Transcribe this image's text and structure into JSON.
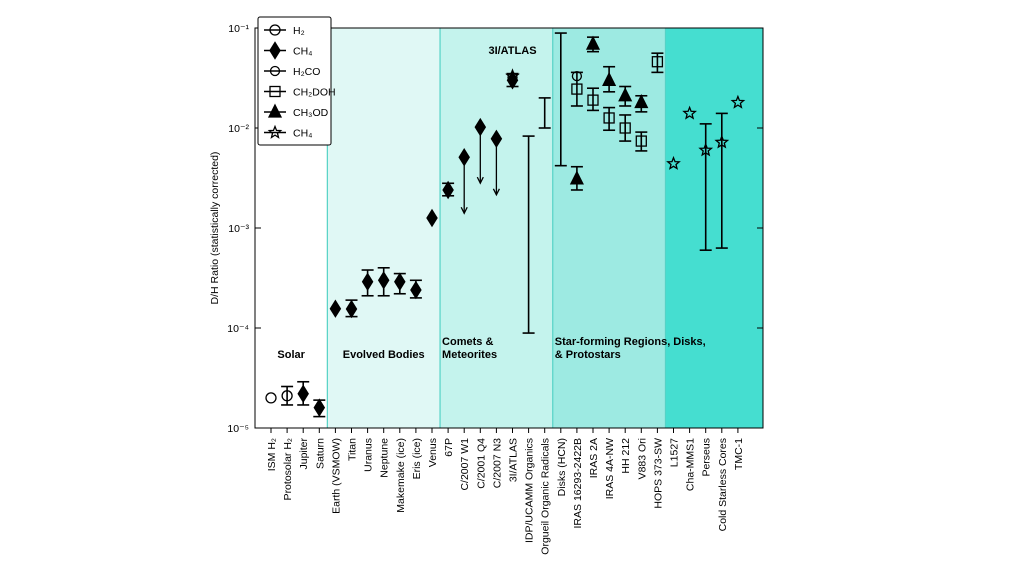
{
  "chart_data": {
    "type": "errorbar",
    "y_label": "D/H Ratio (statistically corrected)",
    "y_scale": "log",
    "ylim": [
      1e-05,
      0.1
    ],
    "yticks": [
      {
        "value": 1e-05,
        "label": "10⁻⁵"
      },
      {
        "value": 0.0001,
        "label": "10⁻⁴"
      },
      {
        "value": 0.001,
        "label": "10⁻³"
      },
      {
        "value": 0.01,
        "label": "10⁻²"
      },
      {
        "value": 0.1,
        "label": "10⁻¹"
      }
    ],
    "legend": "upper left",
    "categories": [
      "ISM H₂",
      "Protosolar H₂",
      "Jupiter",
      "Saturn",
      "Earth (VSMOW)",
      "Titan",
      "Uranus",
      "Neptune",
      "Makemake (ice)",
      "Eris (ice)",
      "Venus",
      "67P",
      "C/2007 W1",
      "C/2001 Q4",
      "C/2007 N3",
      "3I/ATLAS",
      "IDP/UCAMM Organics",
      "Orgueil Organic Radicals",
      "Disks (HCN)",
      "IRAS 16293-2422B",
      "IRAS 2A",
      "IRAS 4A-NW",
      "HH 212",
      "V883 Ori",
      "HOPS 373-SW",
      "L1527",
      "Cha-MMS1",
      "Perseus",
      "Cold Starless Cores",
      "TMC-1"
    ],
    "regions": [
      {
        "label": [
          "Solar"
        ],
        "first": "ISM H₂",
        "last": "Saturn",
        "color": "#ffffff"
      },
      {
        "label": [
          "Evolved Bodies"
        ],
        "first": "Earth (VSMOW)",
        "last": "Venus",
        "color": "#e0f8f5"
      },
      {
        "label": [
          "Comets &",
          "Meteorites"
        ],
        "first": "67P",
        "last": "Orgueil Organic Radicals",
        "color": "#c4f3ed"
      },
      {
        "label": [
          "Star-forming Regions, Disks,",
          " & Protostars"
        ],
        "first": "Disks (HCN)",
        "last": "HOPS 373-SW",
        "color": "#9deae2"
      },
      {
        "label": [],
        "first": "L1527",
        "last": "TMC-1",
        "color": "#45ded0"
      }
    ],
    "annotations": [
      {
        "text": "3I/ATLAS",
        "x": "3I/ATLAS",
        "y": 0.055
      }
    ],
    "series": [
      {
        "name": "H₂",
        "marker": "circle",
        "color": "#000000",
        "x": [
          "ISM H₂",
          "Protosolar H₂"
        ],
        "values": [
          2e-05,
          2.1e-05
        ],
        "lower": [
          null,
          1.7e-05
        ],
        "upper": [
          null,
          2.6e-05
        ]
      },
      {
        "name": "CH₄",
        "marker": "diamond",
        "color": "#000000",
        "x": [
          "Jupiter",
          "Saturn",
          "Earth (VSMOW)",
          "Titan",
          "Uranus",
          "Neptune",
          "Makemake (ice)",
          "Eris (ice)",
          "Venus",
          "67P",
          "C/2007 W1",
          "C/2001 Q4",
          "C/2007 N3",
          "3I/ATLAS"
        ],
        "values": [
          2.2e-05,
          1.6e-05,
          0.000156,
          0.000155,
          0.00029,
          0.0003,
          0.00029,
          0.00024,
          0.00126,
          0.0024,
          0.0051,
          0.0102,
          0.0078,
          0.03
        ],
        "lower": [
          1.7e-05,
          1.3e-05,
          null,
          0.00013,
          0.00021,
          0.00021,
          0.00022,
          0.0002,
          null,
          0.0021,
          null,
          null,
          null,
          0.026
        ],
        "upper": [
          2.9e-05,
          1.9e-05,
          null,
          0.00019,
          0.00038,
          0.0004,
          0.00035,
          0.0003,
          null,
          0.0028,
          null,
          null,
          null,
          0.035
        ],
        "upper_limits": [
          "C/2007 W1",
          "C/2001 Q4",
          "C/2007 N3"
        ]
      },
      {
        "name": "H₂CO",
        "marker": "circle-small",
        "color": "#000000",
        "x": [
          "3I/ATLAS",
          "IRAS 16293-2422B"
        ],
        "values": [
          0.032,
          0.033
        ],
        "lower": [
          null,
          null
        ],
        "upper": [
          null,
          null
        ]
      },
      {
        "name": "CH₂DOH",
        "marker": "square",
        "color": "#000000",
        "x": [
          "IRAS 16293-2422B",
          "IRAS 2A",
          "IRAS 4A-NW",
          "HH 212",
          "V883 Ori",
          "HOPS 373-SW"
        ],
        "values": [
          0.0245,
          0.019,
          0.0126,
          0.01,
          0.0074,
          0.046
        ],
        "lower": [
          0.0166,
          0.015,
          0.0095,
          0.0074,
          0.0059,
          0.036
        ],
        "upper": [
          0.036,
          0.025,
          0.016,
          0.0135,
          0.0091,
          0.056
        ]
      },
      {
        "name": "CH₃OD",
        "marker": "triangle",
        "color": "#000000",
        "x": [
          "IRAS 16293-2422B",
          "IRAS 2A",
          "IRAS 4A-NW",
          "HH 212",
          "V883 Ori"
        ],
        "values": [
          0.0031,
          0.069,
          0.03,
          0.021,
          0.018
        ],
        "lower": [
          0.0024,
          0.058,
          0.023,
          0.0166,
          0.0145
        ],
        "upper": [
          0.0041,
          0.081,
          0.041,
          0.026,
          0.021
        ]
      },
      {
        "name": "CH₄",
        "marker": "star",
        "color": "#000000",
        "x": [
          "3I/ATLAS",
          "L1527",
          "Cha-MMS1",
          "Perseus",
          "Cold Starless Cores",
          "TMC-1"
        ],
        "values": [
          0.033,
          0.0044,
          0.014,
          0.006,
          0.0072,
          0.018
        ],
        "lower": [
          null,
          null,
          null,
          0.0006,
          0.00063,
          null
        ],
        "upper": [
          null,
          null,
          null,
          0.011,
          0.014,
          null
        ]
      }
    ],
    "ranges": [
      {
        "x": "IDP/UCAMM Organics",
        "low": 8.9e-05,
        "high": 0.0083
      },
      {
        "x": "Orgueil Organic Radicals",
        "low": 0.01,
        "high": 0.02
      },
      {
        "x": "Disks (HCN)",
        "low": 0.0042,
        "high": 0.089
      }
    ]
  }
}
